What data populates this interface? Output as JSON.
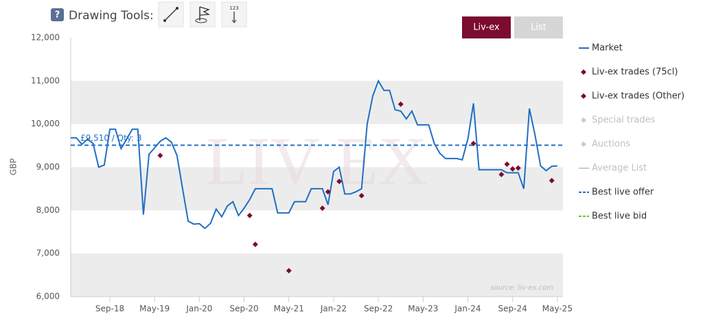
{
  "toolbar": {
    "help": "?",
    "label": "Drawing Tools:",
    "icon_text": "123"
  },
  "buttons": [
    "Liv-ex",
    "List"
  ],
  "chart_data": {
    "type": "line",
    "y_label": "GBP",
    "watermark": "LIV EX",
    "source": "source: liv-ex.com",
    "annotation": "£9,510 / Qty: 3",
    "xlim": [
      "2018-02",
      "2025-06"
    ],
    "xticks": [
      {
        "value": "2018-09",
        "label": "Sep-18"
      },
      {
        "value": "2019-05",
        "label": "May-19"
      },
      {
        "value": "2020-01",
        "label": "Jan-20"
      },
      {
        "value": "2020-09",
        "label": "Sep-20"
      },
      {
        "value": "2021-05",
        "label": "May-21"
      },
      {
        "value": "2022-01",
        "label": "Jan-22"
      },
      {
        "value": "2022-09",
        "label": "Sep-22"
      },
      {
        "value": "2023-05",
        "label": "May-23"
      },
      {
        "value": "2024-01",
        "label": "Jan-24"
      },
      {
        "value": "2024-09",
        "label": "Sep-24"
      },
      {
        "value": "2025-05",
        "label": "May-25"
      }
    ],
    "ylim": [
      6000,
      12000
    ],
    "yticks": [
      {
        "value": 6000,
        "label": "6,000"
      },
      {
        "value": 7000,
        "label": "7,000"
      },
      {
        "value": 8000,
        "label": "8,000"
      },
      {
        "value": 9000,
        "label": "9,000"
      },
      {
        "value": 10000,
        "label": "10,000"
      },
      {
        "value": 11000,
        "label": "11,000"
      },
      {
        "value": 12000,
        "label": "12,000"
      }
    ],
    "alternate_bands": true,
    "series": [
      {
        "name": "Market",
        "type": "line",
        "color": "#1f6fc4",
        "visible": true,
        "x": [
          "2018-02",
          "2018-03",
          "2018-04",
          "2018-05",
          "2018-06",
          "2018-07",
          "2018-08",
          "2018-09",
          "2018-10",
          "2018-11",
          "2018-12",
          "2019-01",
          "2019-02",
          "2019-03",
          "2019-04",
          "2019-05",
          "2019-06",
          "2019-07",
          "2019-08",
          "2019-09",
          "2019-10",
          "2019-11",
          "2019-12",
          "2020-01",
          "2020-02",
          "2020-03",
          "2020-04",
          "2020-05",
          "2020-06",
          "2020-07",
          "2020-08",
          "2020-09",
          "2020-10",
          "2020-11",
          "2020-12",
          "2021-01",
          "2021-02",
          "2021-03",
          "2021-04",
          "2021-05",
          "2021-06",
          "2021-07",
          "2021-08",
          "2021-09",
          "2021-10",
          "2021-11",
          "2021-12",
          "2022-01",
          "2022-02",
          "2022-03",
          "2022-04",
          "2022-05",
          "2022-06",
          "2022-07",
          "2022-08",
          "2022-09",
          "2022-10",
          "2022-11",
          "2022-12",
          "2023-01",
          "2023-02",
          "2023-03",
          "2023-04",
          "2023-05",
          "2023-06",
          "2023-07",
          "2023-08",
          "2023-09",
          "2023-10",
          "2023-11",
          "2023-12",
          "2024-01",
          "2024-02",
          "2024-03",
          "2024-04",
          "2024-05",
          "2024-06",
          "2024-07",
          "2024-08",
          "2024-09",
          "2024-10",
          "2024-11",
          "2024-12",
          "2025-01",
          "2025-02",
          "2025-03",
          "2025-04",
          "2025-05"
        ],
        "values": [
          9680,
          9680,
          9530,
          9650,
          9550,
          9000,
          9050,
          9880,
          9880,
          9430,
          9650,
          9880,
          9880,
          7900,
          9300,
          9450,
          9600,
          9680,
          9580,
          9270,
          8500,
          7750,
          7680,
          7690,
          7580,
          7700,
          8030,
          7850,
          8100,
          8200,
          7880,
          8050,
          8250,
          8500,
          8500,
          8500,
          8500,
          7940,
          7940,
          7940,
          8200,
          8200,
          8200,
          8500,
          8500,
          8500,
          8130,
          8900,
          9000,
          8380,
          8380,
          8430,
          8500,
          10000,
          10650,
          11000,
          10780,
          10780,
          10330,
          10300,
          10120,
          10300,
          9980,
          9980,
          9980,
          9550,
          9320,
          9200,
          9200,
          9200,
          9170,
          9650,
          10480,
          8940,
          8940,
          8940,
          8940,
          8940,
          8870,
          8870,
          8870,
          8500,
          10360,
          9750,
          9030,
          8920,
          9020,
          9030
        ]
      },
      {
        "name": "Liv-ex trades (75cl)",
        "type": "scatter",
        "color": "#7b0c2f",
        "visible": true,
        "x": [
          "2019-06",
          "2020-10",
          "2020-11",
          "2021-05",
          "2021-11",
          "2021-12",
          "2022-02",
          "2022-06",
          "2023-01",
          "2024-02",
          "2024-07",
          "2024-08",
          "2024-09",
          "2024-10",
          "2025-04"
        ],
        "values": [
          9270,
          7880,
          7210,
          6600,
          8050,
          8430,
          8670,
          8340,
          10460,
          9550,
          8830,
          9070,
          8960,
          8980,
          8690
        ]
      },
      {
        "name": "Liv-ex trades (Other)",
        "type": "scatter",
        "color": "#7b0c2f",
        "visible": true,
        "x": [],
        "values": []
      },
      {
        "name": "Special trades",
        "type": "scatter",
        "color": "#cccccc",
        "visible": false,
        "x": [],
        "values": []
      },
      {
        "name": "Auctions",
        "type": "scatter",
        "color": "#cccccc",
        "visible": false,
        "x": [],
        "values": []
      },
      {
        "name": "Average List",
        "type": "line",
        "color": "#cccccc",
        "visible": false,
        "x": [],
        "values": []
      },
      {
        "name": "Best live offer",
        "type": "hline",
        "color": "#1f6fc4",
        "dash": true,
        "visible": true,
        "value": 9510
      },
      {
        "name": "Best live bid",
        "type": "hline",
        "color": "#55cc22",
        "dash": true,
        "visible": true
      }
    ]
  }
}
